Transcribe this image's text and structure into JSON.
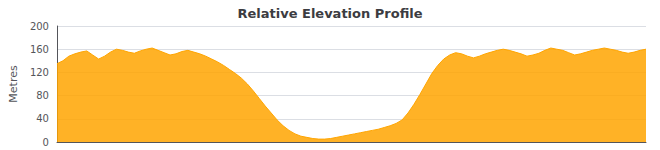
{
  "chart_data": {
    "type": "area",
    "title": "Relative Elevation Profile",
    "ylabel": "Metres",
    "values": [
      135,
      140,
      148,
      152,
      155,
      157,
      150,
      143,
      148,
      155,
      160,
      158,
      155,
      153,
      157,
      160,
      162,
      158,
      154,
      150,
      152,
      156,
      158,
      155,
      152,
      148,
      143,
      138,
      132,
      125,
      118,
      110,
      100,
      88,
      75,
      62,
      50,
      38,
      28,
      20,
      14,
      10,
      8,
      6,
      5,
      5,
      6,
      8,
      10,
      12,
      14,
      16,
      18,
      20,
      22,
      25,
      28,
      32,
      38,
      50,
      65,
      82,
      100,
      118,
      132,
      143,
      150,
      154,
      152,
      148,
      145,
      148,
      152,
      155,
      158,
      160,
      158,
      155,
      152,
      148,
      150,
      153,
      158,
      162,
      160,
      158,
      154,
      150,
      152,
      155,
      158,
      160,
      162,
      160,
      158,
      155,
      153,
      155,
      158,
      160
    ],
    "color": "#FFA500",
    "ylim": [
      0,
      200
    ],
    "yticks": [
      0,
      40,
      80,
      120,
      160,
      200
    ],
    "grid": true,
    "tick_labels": "y"
  }
}
